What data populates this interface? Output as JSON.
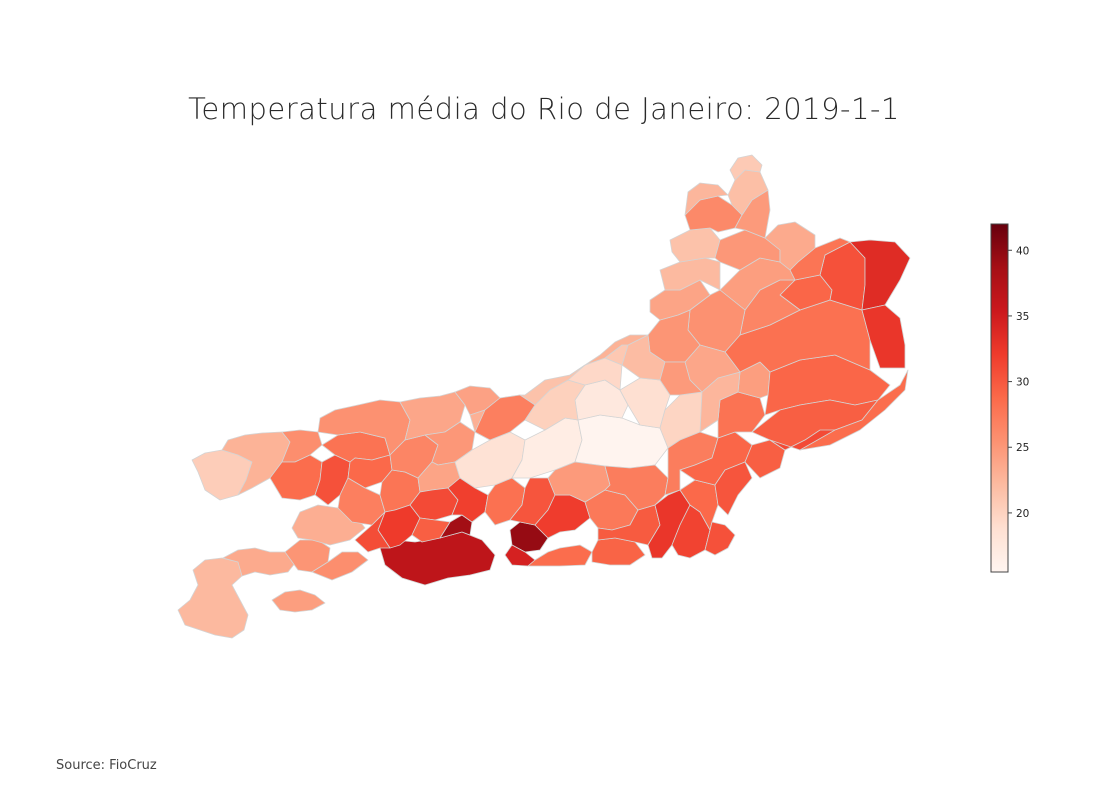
{
  "title": "Temperatura média do Rio de Janeiro: 2019-1-1",
  "source": "Source: FioCruz",
  "chart_data": {
    "type": "choropleth",
    "region": "Rio de Janeiro",
    "date": "2019-1-1",
    "colorscale": "Reds",
    "colorbar": {
      "range": [
        15.5,
        42
      ],
      "ticks": [
        20,
        25,
        30,
        35,
        40
      ],
      "tick_labels": [
        "20",
        "25",
        "30",
        "35",
        "40"
      ]
    },
    "colors": {
      "scale": [
        "#fff5f0",
        "#fee0d2",
        "#fcbba1",
        "#fc9272",
        "#fb6a4a",
        "#ef3b2c",
        "#cb181d",
        "#a50f15",
        "#67000d"
      ],
      "border": "#d4d4d4"
    }
  }
}
